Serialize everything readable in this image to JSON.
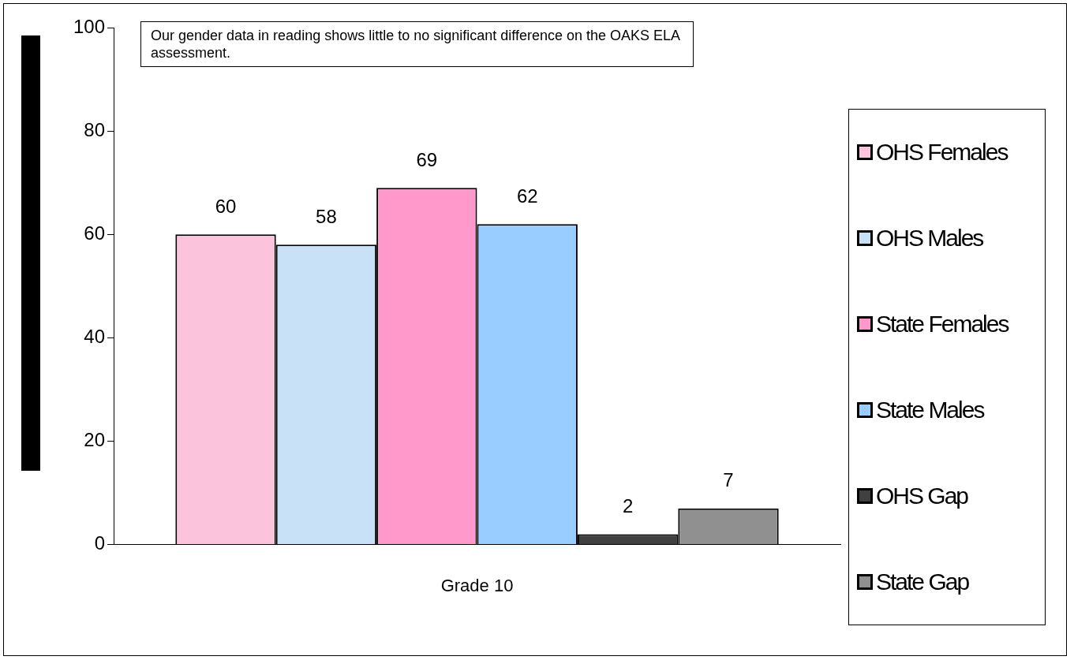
{
  "chart_data": {
    "type": "bar",
    "categories": [
      "Grade 10"
    ],
    "series": [
      {
        "name": "OHS Females",
        "color": "#fbc3dc",
        "values": [
          60
        ]
      },
      {
        "name": "OHS Males",
        "color": "#c9e1f7",
        "values": [
          58
        ]
      },
      {
        "name": "State Females",
        "color": "#ff99cc",
        "values": [
          69
        ]
      },
      {
        "name": "State Males",
        "color": "#99ccff",
        "values": [
          62
        ]
      },
      {
        "name": "OHS Gap",
        "color": "#404040",
        "values": [
          2
        ]
      },
      {
        "name": "State Gap",
        "color": "#909090",
        "values": [
          7
        ]
      }
    ],
    "ylim": [
      0,
      100
    ],
    "yticks": [
      0,
      20,
      40,
      60,
      80,
      100
    ],
    "grid": false,
    "legend": "right",
    "data_labels": true,
    "annotations": [
      "Our gender data in reading shows little to no significant difference on the OAKS ELA assessment."
    ]
  }
}
